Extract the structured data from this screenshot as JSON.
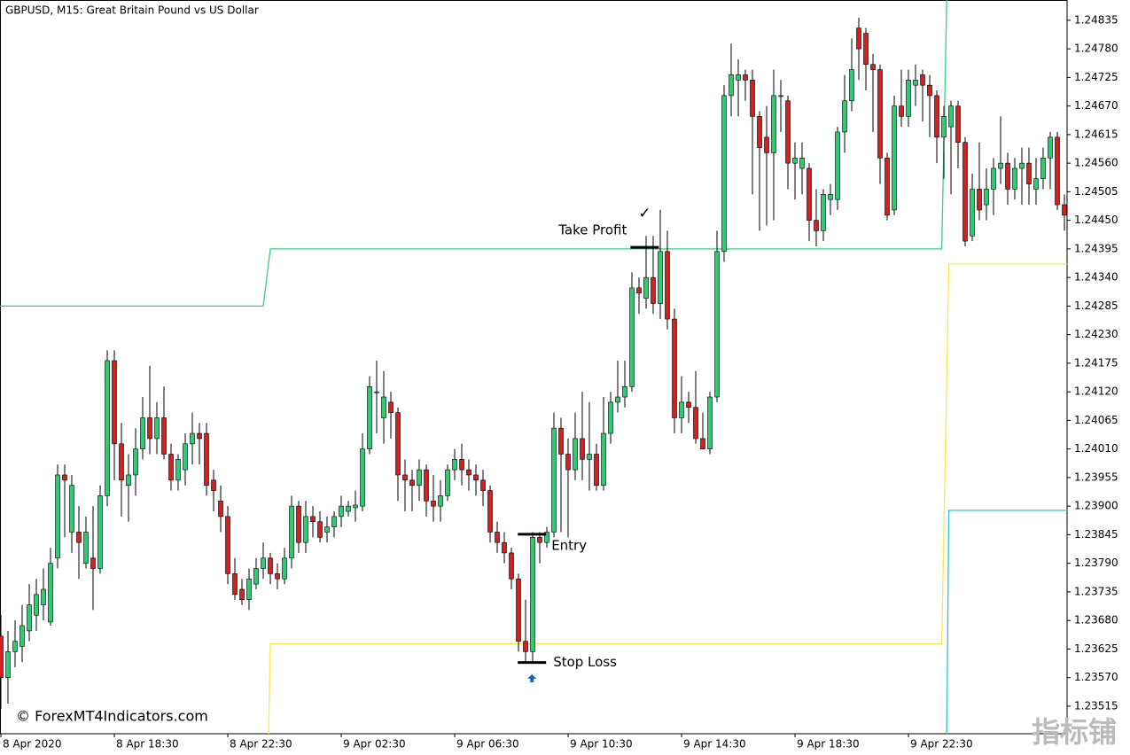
{
  "chart_data": {
    "type": "candlestick",
    "title": "GBPUSD, M15:  Great Britain Pound vs US Dollar",
    "copyright": "© ForexMT4Indicators.com",
    "watermark": "指标铺",
    "bull_color": "#2ecc71",
    "bear_color": "#d32020",
    "xlim": [
      -0.125,
      150.375
    ],
    "ylim": [
      1.23462,
      1.24874
    ],
    "xticks": [
      {
        "value": 0,
        "label": "8 Apr 2020"
      },
      {
        "value": 16,
        "label": "8 Apr 18:30"
      },
      {
        "value": 32,
        "label": "8 Apr 22:30"
      },
      {
        "value": 48,
        "label": "9 Apr 02:30"
      },
      {
        "value": 64,
        "label": "9 Apr 06:30"
      },
      {
        "value": 80,
        "label": "9 Apr 10:30"
      },
      {
        "value": 96,
        "label": "9 Apr 14:30"
      },
      {
        "value": 112,
        "label": "9 Apr 18:30"
      },
      {
        "value": 128,
        "label": "9 Apr 22:30"
      }
    ],
    "yticks": [
      1.24835,
      {
        "value": 1.2478,
        "label": "1.24780"
      },
      1.24725,
      {
        "value": 1.2467,
        "label": "1.24670"
      },
      1.24615,
      {
        "value": 1.2456,
        "label": "1.24560"
      },
      1.24505,
      {
        "value": 1.2445,
        "label": "1.24450"
      },
      1.24395,
      {
        "value": 1.2434,
        "label": "1.24340"
      },
      1.24285,
      {
        "value": 1.2423,
        "label": "1.24230"
      },
      1.24175,
      {
        "value": 1.2412,
        "label": "1.24120"
      },
      1.24065,
      {
        "value": 1.2401,
        "label": "1.24010"
      },
      1.23955,
      {
        "value": 1.239,
        "label": "1.23900"
      },
      1.23845,
      {
        "value": 1.2379,
        "label": "1.23790"
      },
      1.23735,
      {
        "value": 1.2368,
        "label": "1.23680"
      },
      1.23625,
      {
        "value": 1.2357,
        "label": "1.23570"
      },
      1.23515
    ],
    "open": [
      1.2365,
      1.2357,
      1.2362,
      1.2363,
      1.2366,
      1.2369,
      1.2371,
      1.23677,
      1.238,
      1.2396,
      1.2385,
      1.2385,
      1.2379,
      1.238,
      1.2378,
      1.2392,
      1.2418,
      1.2402,
      1.2394,
      1.2396,
      1.2401,
      1.2407,
      1.2403,
      1.2407,
      1.24,
      1.2395,
      1.2397,
      1.2402,
      1.2404,
      1.2404,
      1.2395,
      1.2391,
      1.2388,
      1.2377,
      1.2374,
      1.2372,
      1.2375,
      1.2378,
      1.238,
      1.2377,
      1.2376,
      1.238,
      1.239,
      1.2383,
      1.2388,
      1.2387,
      1.2385,
      1.2386,
      1.2388,
      1.2389,
      1.23897,
      1.239,
      1.2401,
      1.2412,
      1.2407,
      1.241,
      1.2408,
      1.2396,
      1.2395,
      1.2394,
      1.2397,
      1.2391,
      1.239,
      1.2392,
      1.2397,
      1.2399,
      1.2397,
      1.2396,
      1.2395,
      1.2393,
      1.2385,
      1.2383,
      1.2381,
      1.2376,
      1.2364,
      1.2362,
      1.2384,
      1.2383,
      1.2385,
      1.2405,
      1.24,
      1.2397,
      1.2403,
      1.2399,
      1.24,
      1.2394,
      1.2404,
      1.241,
      1.2411,
      1.2413,
      1.2432,
      1.243,
      1.2434,
      1.2429,
      1.2439,
      1.2426,
      1.2407,
      1.241,
      1.2409,
      1.2403,
      1.2401,
      1.2411,
      1.2439,
      1.2469,
      1.2472,
      1.2473,
      1.2472,
      1.2465,
      1.2461,
      1.2458,
      1.2469,
      1.2468,
      1.2456,
      1.2455,
      1.2455,
      1.2445,
      1.2443,
      1.2449,
      1.2449,
      1.2462,
      1.2468,
      1.2482,
      1.2481,
      1.2475,
      1.2474,
      1.2457,
      1.2447,
      1.2467,
      1.2465,
      1.2471,
      1.2473,
      1.2471,
      1.2469,
      1.2461,
      1.2463,
      1.2467,
      1.246,
      1.2442,
      1.2451,
      1.2448,
      1.2451,
      1.2455,
      1.2456,
      1.2451,
      1.2455,
      1.2456,
      1.2451,
      1.2453,
      1.2457,
      1.2461,
      1.2448
    ],
    "high": [
      1.2369,
      1.2366,
      1.2368,
      1.2371,
      1.2375,
      1.2376,
      1.2378,
      1.2382,
      1.2398,
      1.2398,
      1.2396,
      1.239,
      1.2388,
      1.239,
      1.2394,
      1.242,
      1.242,
      1.2406,
      1.24,
      1.2405,
      1.2411,
      1.2417,
      1.241,
      1.2413,
      1.2402,
      1.24,
      1.2404,
      1.2408,
      1.2406,
      1.2406,
      1.2397,
      1.2394,
      1.239,
      1.238,
      1.2376,
      1.2378,
      1.238,
      1.2383,
      1.2381,
      1.2379,
      1.2382,
      1.2392,
      1.2391,
      1.2391,
      1.239,
      1.2389,
      1.2388,
      1.2389,
      1.2392,
      1.2391,
      1.2393,
      1.2404,
      1.2415,
      1.2418,
      1.2416,
      1.2412,
      1.2409,
      1.2399,
      1.2397,
      1.2399,
      1.2398,
      1.2396,
      1.2395,
      1.2398,
      1.2401,
      1.2402,
      1.2399,
      1.2398,
      1.2397,
      1.2394,
      1.2387,
      1.2385,
      1.2382,
      1.2377,
      1.2372,
      1.2385,
      1.2385,
      1.2386,
      1.2408,
      1.2407,
      1.2403,
      1.2408,
      1.2412,
      1.241,
      1.2402,
      1.2411,
      1.2412,
      1.2418,
      1.2418,
      1.2435,
      1.2434,
      1.2442,
      1.2442,
      1.2447,
      1.2443,
      1.2428,
      1.2415,
      1.2412,
      1.2416,
      1.2408,
      1.2412,
      1.2443,
      1.2471,
      1.2479,
      1.2476,
      1.2474,
      1.2474,
      1.2466,
      1.2467,
      1.2474,
      1.2472,
      1.2469,
      1.246,
      1.246,
      1.2456,
      1.2451,
      1.2451,
      1.2452,
      1.2463,
      1.2473,
      1.248,
      1.2484,
      1.2482,
      1.2477,
      1.2475,
      1.2458,
      1.2469,
      1.2474,
      1.2474,
      1.2475,
      1.2474,
      1.2473,
      1.247,
      1.2467,
      1.2468,
      1.2468,
      1.2461,
      1.2454,
      1.246,
      1.2455,
      1.2457,
      1.2465,
      1.2458,
      1.2457,
      1.2459,
      1.2459,
      1.2457,
      1.2459,
      1.2462,
      1.2462,
      1.245
    ],
    "low": [
      1.2351,
      1.2352,
      1.2359,
      1.236,
      1.2364,
      1.2366,
      1.2368,
      1.2367,
      1.2378,
      1.2384,
      1.2381,
      1.2376,
      1.2378,
      1.237,
      1.2377,
      1.239,
      1.2395,
      1.2388,
      1.2387,
      1.2392,
      1.2399,
      1.24,
      1.24,
      1.2399,
      1.2393,
      1.2393,
      1.2394,
      1.2398,
      1.2398,
      1.2392,
      1.2389,
      1.2385,
      1.2375,
      1.2372,
      1.2371,
      1.237,
      1.2374,
      1.2376,
      1.2375,
      1.2374,
      1.2375,
      1.2378,
      1.2381,
      1.2381,
      1.2384,
      1.2383,
      1.2383,
      1.2384,
      1.2386,
      1.2388,
      1.2387,
      1.2389,
      1.24,
      1.2404,
      1.2402,
      1.2403,
      1.2391,
      1.2389,
      1.2389,
      1.2391,
      1.2388,
      1.2387,
      1.2387,
      1.2391,
      1.2395,
      1.2394,
      1.2393,
      1.2392,
      1.239,
      1.2383,
      1.2381,
      1.2379,
      1.2374,
      1.2362,
      1.236,
      1.236,
      1.2379,
      1.2382,
      1.2384,
      1.2385,
      1.2384,
      1.2395,
      1.2395,
      1.2393,
      1.2393,
      1.2393,
      1.2402,
      1.2408,
      1.2409,
      1.2412,
      1.2427,
      1.2428,
      1.2427,
      1.2426,
      1.2424,
      1.2404,
      1.2404,
      1.2406,
      1.2402,
      1.2401,
      1.24,
      1.241,
      1.2437,
      1.2465,
      1.2465,
      1.2468,
      1.245,
      1.2443,
      1.2444,
      1.2445,
      1.2462,
      1.2451,
      1.2449,
      1.245,
      1.2441,
      1.244,
      1.2441,
      1.2446,
      1.2447,
      1.2458,
      1.2466,
      1.2472,
      1.247,
      1.2462,
      1.2452,
      1.2445,
      1.2446,
      1.2463,
      1.2463,
      1.2467,
      1.2464,
      1.2461,
      1.2456,
      1.2453,
      1.245,
      1.2455,
      1.244,
      1.2441,
      1.2445,
      1.2445,
      1.2446,
      1.2452,
      1.2448,
      1.2449,
      1.2448,
      1.2448,
      1.2448,
      1.2451,
      1.2451,
      1.2447,
      1.2443
    ],
    "close": [
      1.2357,
      1.2362,
      1.2364,
      1.2367,
      1.2371,
      1.2373,
      1.2374,
      1.2379,
      1.2396,
      1.2395,
      1.2394,
      1.2383,
      1.2385,
      1.2378,
      1.2392,
      1.2418,
      1.2402,
      1.2395,
      1.2396,
      1.2401,
      1.2407,
      1.2403,
      1.2407,
      1.24,
      1.2395,
      1.2399,
      1.2402,
      1.2404,
      1.2403,
      1.2394,
      1.2393,
      1.2388,
      1.2377,
      1.2373,
      1.2372,
      1.2376,
      1.2378,
      1.238,
      1.2377,
      1.2376,
      1.238,
      1.239,
      1.2383,
      1.2388,
      1.2387,
      1.2384,
      1.2386,
      1.2388,
      1.239,
      1.239,
      1.23902,
      1.2401,
      1.2413,
      1.2412,
      1.2411,
      1.2408,
      1.2396,
      1.2395,
      1.2394,
      1.2397,
      1.2391,
      1.239,
      1.2392,
      1.2397,
      1.2399,
      1.2397,
      1.2396,
      1.2395,
      1.2393,
      1.2385,
      1.2383,
      1.2381,
      1.2376,
      1.2364,
      1.2362,
      1.2384,
      1.2383,
      1.2385,
      1.2405,
      1.24,
      1.2397,
      1.2403,
      1.2399,
      1.24,
      1.2394,
      1.2404,
      1.241,
      1.2411,
      1.2413,
      1.2432,
      1.2431,
      1.2434,
      1.2429,
      1.2439,
      1.2426,
      1.2407,
      1.241,
      1.2409,
      1.2403,
      1.2401,
      1.2411,
      1.2439,
      1.2469,
      1.2473,
      1.2473,
      1.2472,
      1.2465,
      1.2459,
      1.2458,
      1.2469,
      1.2469,
      1.2456,
      1.2457,
      1.2457,
      1.2445,
      1.2443,
      1.245,
      1.245,
      1.2462,
      1.2468,
      1.2474,
      1.2478,
      1.2475,
      1.2474,
      1.2457,
      1.2446,
      1.2467,
      1.2465,
      1.2472,
      1.2472,
      1.2471,
      1.2469,
      1.2461,
      1.2465,
      1.2467,
      1.246,
      1.2441,
      1.2451,
      1.2447,
      1.2451,
      1.2455,
      1.2456,
      1.2451,
      1.2455,
      1.2456,
      1.2452,
      1.2453,
      1.2457,
      1.2461,
      1.2448,
      1.2446
    ],
    "lines": [
      {
        "color": "#34d47f",
        "x": [
          -0.125,
          37,
          38,
          132.7,
          133.4
        ],
        "values": [
          1.24285,
          1.24285,
          1.24395,
          1.24395,
          1.24874
        ]
      },
      {
        "color": "#f7ea4a",
        "x": [
          37.75,
          38,
          132.7,
          133.7,
          150.375
        ],
        "values": [
          1.23462,
          1.23635,
          1.23635,
          1.24366,
          1.24366
        ]
      },
      {
        "color": "#2cc3d6",
        "x": [
          133.4,
          133.7,
          150.375
        ],
        "values": [
          1.23462,
          1.23892,
          1.23892
        ]
      }
    ],
    "markers": [
      {
        "label": "Take Profit",
        "note": "✓",
        "x": [
          88.8,
          92.8
        ],
        "value": 1.24398
      },
      {
        "label": "Entry",
        "x": [
          72.9,
          76.9
        ],
        "value": 1.23846
      },
      {
        "label": "Stop Loss",
        "x": [
          72.9,
          76.9
        ],
        "value": 1.23599
      }
    ],
    "signal": {
      "x": 74.9,
      "value": 1.23568,
      "color": "#1565c0"
    }
  }
}
